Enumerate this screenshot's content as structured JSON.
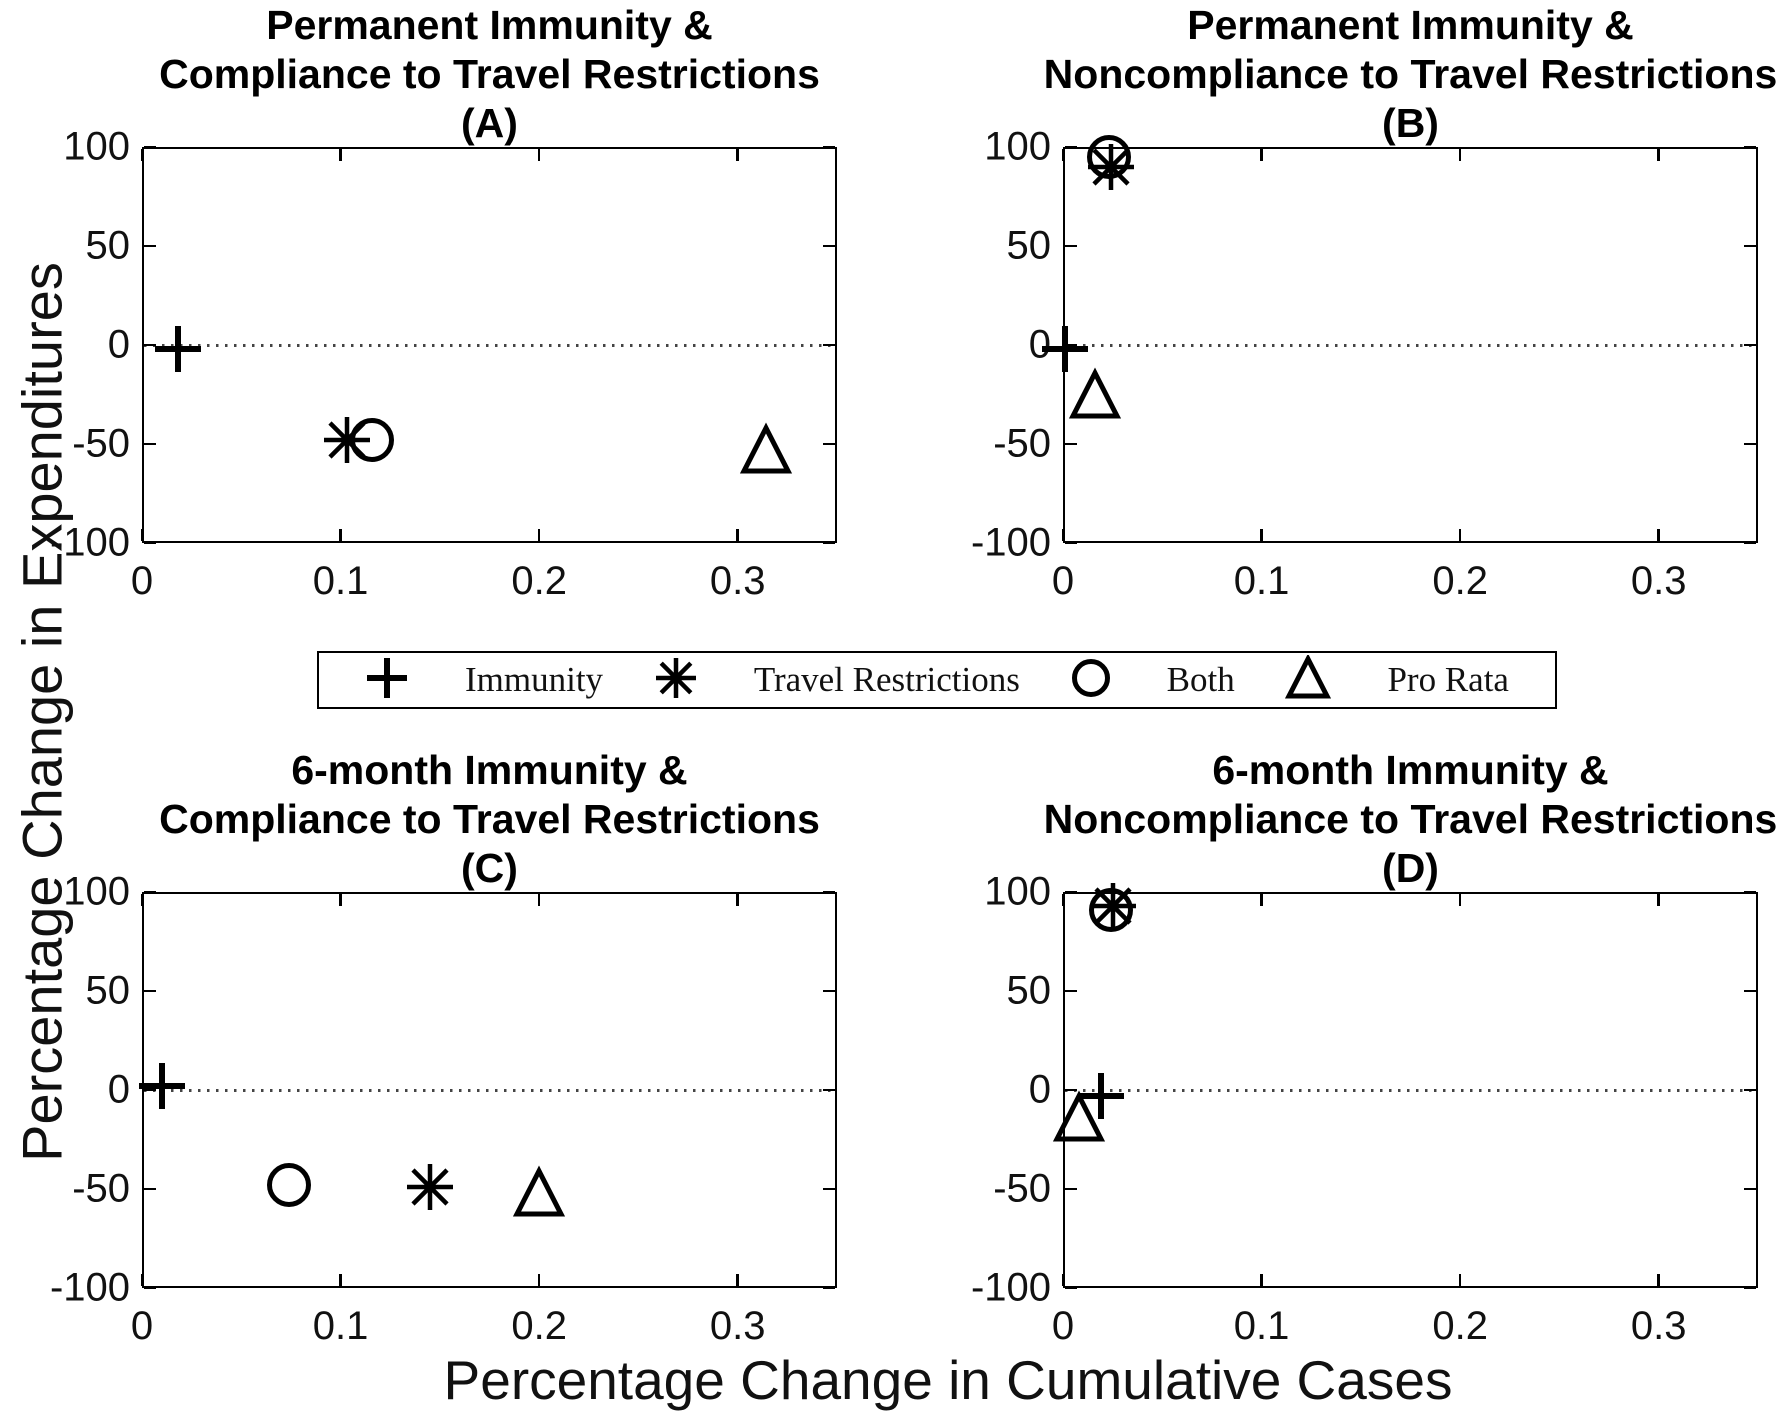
{
  "figure": {
    "ylabel": "Percentage Change in Expenditures",
    "xlabel": "Percentage Change in Cumulative Cases",
    "marker_color": "#000000",
    "background": "#ffffff"
  },
  "legend": {
    "items": [
      {
        "marker": "plus",
        "label": "Immunity"
      },
      {
        "marker": "asterisk",
        "label": "Travel Restrictions"
      },
      {
        "marker": "circle",
        "label": "Both"
      },
      {
        "marker": "triangle",
        "label": "Pro Rata"
      }
    ]
  },
  "chart_data": [
    {
      "id": "A",
      "type": "scatter",
      "title_lines": [
        "Permanent Immunity &",
        "Compliance to Travel Restrictions",
        "(A)"
      ],
      "xlim": [
        0,
        0.35
      ],
      "ylim": [
        -100,
        100
      ],
      "xticks": [
        {
          "v": 0,
          "label": "0"
        },
        {
          "v": 0.1,
          "label": "0.1"
        },
        {
          "v": 0.2,
          "label": "0.2"
        },
        {
          "v": 0.3,
          "label": "0.3"
        }
      ],
      "yticks": [
        {
          "v": 100,
          "label": "100"
        },
        {
          "v": 50,
          "label": "50"
        },
        {
          "v": 0,
          "label": "0"
        },
        {
          "v": -50,
          "label": "-50"
        },
        {
          "v": -100,
          "label": "-100"
        }
      ],
      "zero_line_y": 0,
      "grid": false,
      "series": [
        {
          "name": "Immunity",
          "marker": "plus",
          "points": [
            [
              0.018,
              -2
            ]
          ]
        },
        {
          "name": "Both",
          "marker": "circle",
          "points": [
            [
              0.116,
              -48
            ]
          ]
        },
        {
          "name": "Pro Rata",
          "marker": "triangle",
          "points": [
            [
              0.314,
              -53
            ]
          ]
        },
        {
          "name": "Travel Restrictions",
          "marker": "asterisk",
          "points": [
            [
              0.103,
              -48
            ]
          ]
        }
      ]
    },
    {
      "id": "B",
      "type": "scatter",
      "title_lines": [
        "Permanent Immunity &",
        "Noncompliance to Travel Restrictions",
        "(B)"
      ],
      "xlim": [
        0,
        0.35
      ],
      "ylim": [
        -100,
        100
      ],
      "xticks": [
        {
          "v": 0,
          "label": "0"
        },
        {
          "v": 0.1,
          "label": "0.1"
        },
        {
          "v": 0.2,
          "label": "0.2"
        },
        {
          "v": 0.3,
          "label": "0.3"
        }
      ],
      "yticks": [
        {
          "v": 100,
          "label": "100"
        },
        {
          "v": 50,
          "label": "50"
        },
        {
          "v": 0,
          "label": "0"
        },
        {
          "v": -50,
          "label": "-50"
        },
        {
          "v": -100,
          "label": "-100"
        }
      ],
      "zero_line_y": 0,
      "grid": false,
      "series": [
        {
          "name": "Immunity",
          "marker": "plus",
          "points": [
            [
              0.001,
              -2
            ]
          ]
        },
        {
          "name": "Both",
          "marker": "circle",
          "points": [
            [
              0.023,
              95
            ]
          ]
        },
        {
          "name": "Pro Rata",
          "marker": "triangle",
          "points": [
            [
              0.016,
              -25
            ]
          ]
        },
        {
          "name": "Travel Restrictions",
          "marker": "asterisk",
          "points": [
            [
              0.024,
              90
            ]
          ]
        }
      ]
    },
    {
      "id": "C",
      "type": "scatter",
      "title_lines": [
        "6-month Immunity &",
        "Compliance to Travel Restrictions",
        "(C)"
      ],
      "xlim": [
        0,
        0.35
      ],
      "ylim": [
        -100,
        100
      ],
      "xticks": [
        {
          "v": 0,
          "label": "0"
        },
        {
          "v": 0.1,
          "label": "0.1"
        },
        {
          "v": 0.2,
          "label": "0.2"
        },
        {
          "v": 0.3,
          "label": "0.3"
        }
      ],
      "yticks": [
        {
          "v": 100,
          "label": "100"
        },
        {
          "v": 50,
          "label": "50"
        },
        {
          "v": 0,
          "label": "0"
        },
        {
          "v": -50,
          "label": "-50"
        },
        {
          "v": -100,
          "label": "-100"
        }
      ],
      "zero_line_y": 0,
      "grid": false,
      "series": [
        {
          "name": "Immunity",
          "marker": "plus",
          "points": [
            [
              0.01,
              2
            ]
          ]
        },
        {
          "name": "Both",
          "marker": "circle",
          "points": [
            [
              0.074,
              -48
            ]
          ]
        },
        {
          "name": "Pro Rata",
          "marker": "triangle",
          "points": [
            [
              0.2,
              -52
            ]
          ]
        },
        {
          "name": "Travel Restrictions",
          "marker": "asterisk",
          "points": [
            [
              0.145,
              -49
            ]
          ]
        }
      ]
    },
    {
      "id": "D",
      "type": "scatter",
      "title_lines": [
        "6-month Immunity &",
        "Noncompliance to Travel Restrictions",
        "(D)"
      ],
      "xlim": [
        0,
        0.35
      ],
      "ylim": [
        -100,
        100
      ],
      "xticks": [
        {
          "v": 0,
          "label": "0"
        },
        {
          "v": 0.1,
          "label": "0.1"
        },
        {
          "v": 0.2,
          "label": "0.2"
        },
        {
          "v": 0.3,
          "label": "0.3"
        }
      ],
      "yticks": [
        {
          "v": 100,
          "label": "100"
        },
        {
          "v": 50,
          "label": "50"
        },
        {
          "v": 0,
          "label": "0"
        },
        {
          "v": -50,
          "label": "-50"
        },
        {
          "v": -100,
          "label": "-100"
        }
      ],
      "zero_line_y": 0,
      "grid": false,
      "series": [
        {
          "name": "Immunity",
          "marker": "plus",
          "points": [
            [
              0.019,
              -3
            ]
          ]
        },
        {
          "name": "Both",
          "marker": "circle",
          "points": [
            [
              0.024,
              91
            ]
          ]
        },
        {
          "name": "Pro Rata",
          "marker": "triangle",
          "points": [
            [
              0.008,
              -14
            ]
          ]
        },
        {
          "name": "Travel Restrictions",
          "marker": "asterisk",
          "points": [
            [
              0.025,
              93
            ]
          ]
        }
      ]
    }
  ]
}
